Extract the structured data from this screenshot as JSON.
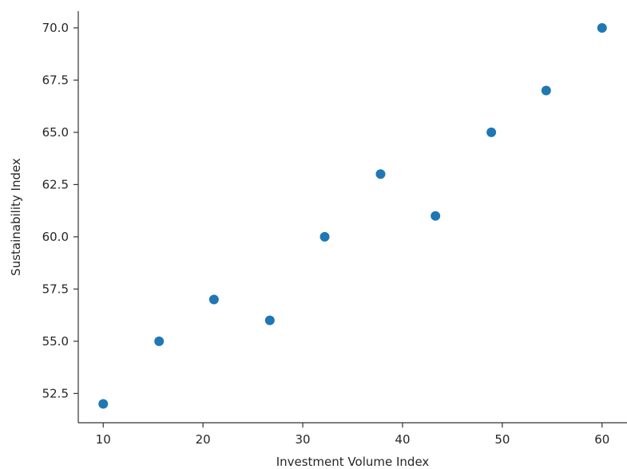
{
  "chart_data": {
    "type": "scatter",
    "title": "",
    "xlabel": "Investment Volume Index",
    "ylabel": "Sustainability Index",
    "xlim": [
      7.5,
      62.5
    ],
    "ylim": [
      51.1,
      70.8
    ],
    "xticks": [
      10,
      20,
      30,
      40,
      50,
      60
    ],
    "xtick_labels": [
      "10",
      "20",
      "30",
      "40",
      "50",
      "60"
    ],
    "yticks": [
      52.5,
      55.0,
      57.5,
      60.0,
      62.5,
      65.0,
      67.5,
      70.0
    ],
    "ytick_labels": [
      "52.5",
      "55.0",
      "57.5",
      "60.0",
      "62.5",
      "65.0",
      "67.5",
      "70.0"
    ],
    "grid": false,
    "marker_color": "#1f77b4",
    "series": [
      {
        "x": [
          10.0,
          15.6,
          21.1,
          26.7,
          32.2,
          37.8,
          43.3,
          48.9,
          54.4,
          60.0
        ],
        "y": [
          52,
          55,
          57,
          56,
          60,
          63,
          61,
          65,
          67,
          70
        ]
      }
    ]
  }
}
